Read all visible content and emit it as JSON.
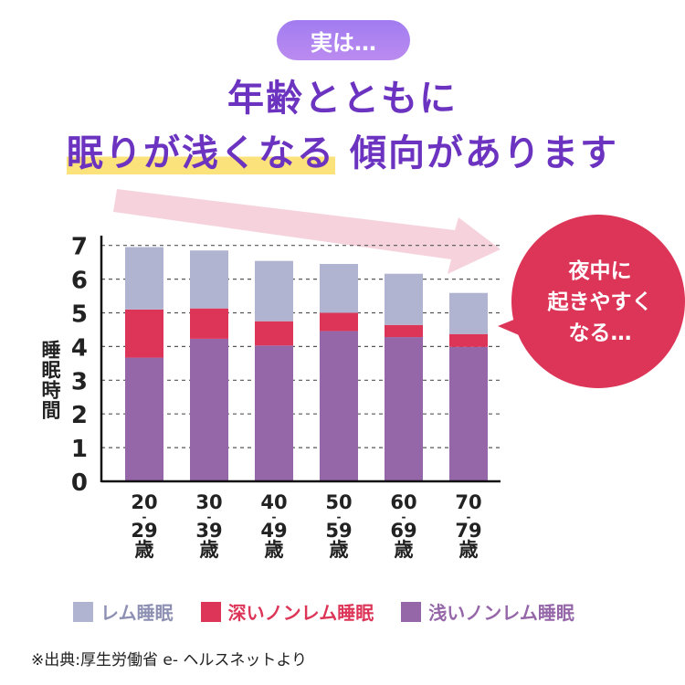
{
  "badge": "実は…",
  "headline": {
    "line1": "年齢とともに",
    "line2_highlight": "眠りが浅くなる",
    "line2_rest": "傾向があります"
  },
  "bubble": {
    "lines": [
      "夜中に",
      "起きやすく",
      "なる…"
    ]
  },
  "source": "※出典:厚生労働省 e- ヘルスネットより",
  "colors": {
    "rem": "#b1b4d0",
    "deep": "#dc3558",
    "light": "#9566a8",
    "title": "#6b33c0",
    "bubble": "#dc3558",
    "arrow": "#f6d3dc"
  },
  "chart_data": {
    "type": "bar",
    "stacked": true,
    "ylabel": "睡眠時間",
    "ylim": [
      0,
      7
    ],
    "yticks": [
      "0",
      "1",
      "2",
      "3",
      "4",
      "5",
      "6",
      "7"
    ],
    "grid": "dashed horizontal",
    "categories": [
      {
        "from": "20",
        "sep": "-",
        "to": "29",
        "unit": "歳"
      },
      {
        "from": "30",
        "sep": "-",
        "to": "39",
        "unit": "歳"
      },
      {
        "from": "40",
        "sep": "-",
        "to": "49",
        "unit": "歳"
      },
      {
        "from": "50",
        "sep": "-",
        "to": "59",
        "unit": "歳"
      },
      {
        "from": "60",
        "sep": "-",
        "to": "69",
        "unit": "歳"
      },
      {
        "from": "70",
        "sep": "-",
        "to": "79",
        "unit": "歳"
      }
    ],
    "series": [
      {
        "name": "浅いノンレム睡眠",
        "key": "light",
        "values": [
          3.67,
          4.23,
          4.03,
          4.46,
          4.28,
          3.99
        ]
      },
      {
        "name": "深いノンレム睡眠",
        "key": "deep",
        "values": [
          1.43,
          0.9,
          0.72,
          0.54,
          0.36,
          0.38
        ]
      },
      {
        "name": "レム睡眠",
        "key": "rem",
        "values": [
          1.85,
          1.72,
          1.79,
          1.45,
          1.52,
          1.22
        ]
      }
    ],
    "legend": {
      "placement": "bottom",
      "items": [
        {
          "label": "レム睡眠",
          "key": "rem"
        },
        {
          "label": "深いノンレム睡眠",
          "key": "deep"
        },
        {
          "label": "浅いノンレム睡眠",
          "key": "light"
        }
      ]
    }
  }
}
